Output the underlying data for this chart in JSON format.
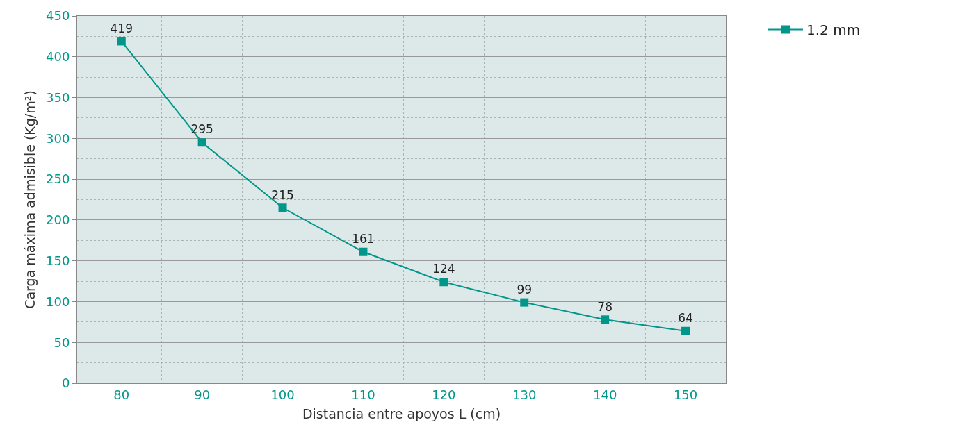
{
  "chart_data": {
    "type": "line",
    "xlabel": "Distancia entre apoyos L (cm)",
    "ylabel": "Carga máxima admisible (Kg/m²)",
    "categories": [
      "80",
      "90",
      "100",
      "110",
      "120",
      "130",
      "140",
      "150"
    ],
    "series": [
      {
        "name": "1.2 mm",
        "color": "#00968a",
        "values": [
          419,
          295,
          215,
          161,
          124,
          99,
          78,
          64
        ]
      }
    ],
    "ylim": [
      0,
      450
    ],
    "yticks": [
      0,
      50,
      100,
      150,
      200,
      250,
      300,
      350,
      400,
      450
    ],
    "grid": true,
    "legend": "top right",
    "marker": "square",
    "line_style": "solid",
    "data_labels": true
  }
}
